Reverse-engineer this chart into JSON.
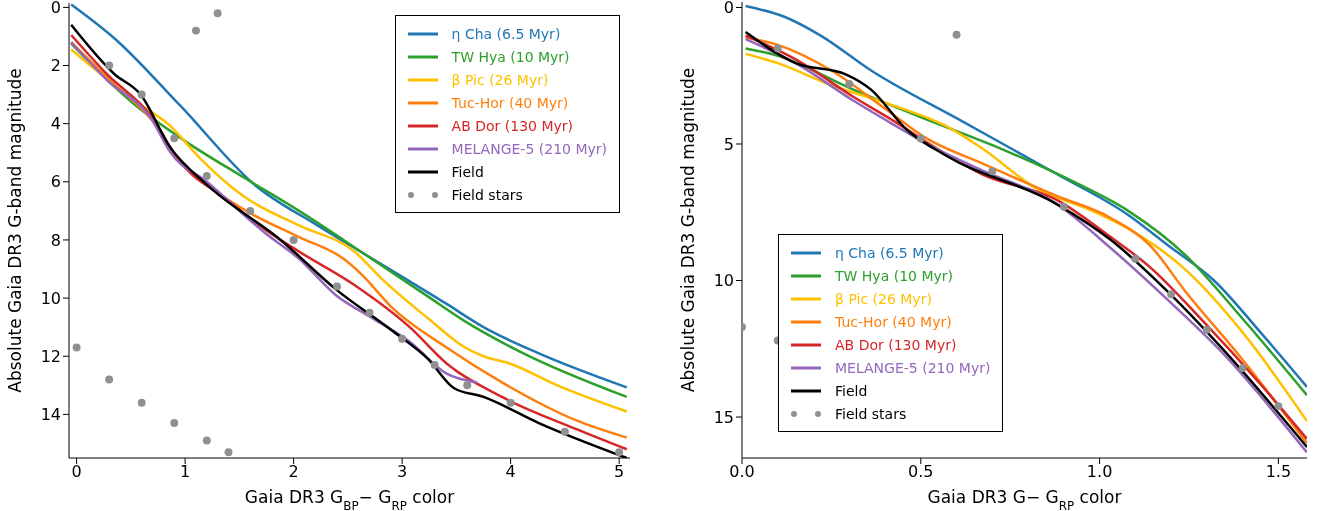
{
  "chart_data": [
    {
      "type": "line",
      "xlabel": "Gaia DR3 G$_{BP}$− G$_{RP}$ color",
      "ylabel": "Absolute Gaia DR3 G-band magnitude",
      "xlim": [
        -0.07,
        5.1
      ],
      "ylim": [
        15.5,
        -0.15
      ],
      "xticks": [
        0,
        1,
        2,
        3,
        4,
        5
      ],
      "yticks": [
        0,
        2,
        4,
        6,
        8,
        10,
        12,
        14
      ],
      "legend": "top right",
      "series": [
        {
          "name": "η Cha (6.5 Myr)",
          "color": "#1f77b4",
          "x": [
            -0.05,
            0.35,
            0.96,
            1.64,
            2.22,
            2.66,
            3.41,
            3.75,
            4.26,
            5.07
          ],
          "values": [
            -0.1,
            1.07,
            3.4,
            6.1,
            7.5,
            8.5,
            10.2,
            11.0,
            11.9,
            13.07
          ]
        },
        {
          "name": "TW Hya (10 Myr)",
          "color": "#2ca02c",
          "x": [
            -0.05,
            0.52,
            1.0,
            1.54,
            2.05,
            2.66,
            3.24,
            3.58,
            4.09,
            5.07
          ],
          "values": [
            1.25,
            3.3,
            4.6,
            5.85,
            7.0,
            8.5,
            9.95,
            10.8,
            11.85,
            13.4
          ]
        },
        {
          "name": "β Pic (26 Myr)",
          "color": "#ffc000",
          "x": [
            -0.05,
            0.52,
            0.86,
            1.14,
            1.54,
            2.05,
            2.56,
            2.83,
            3.24,
            3.58,
            3.75,
            3.99,
            4.43,
            5.07
          ],
          "values": [
            1.45,
            3.17,
            4.07,
            5.2,
            6.5,
            7.5,
            8.4,
            9.4,
            10.7,
            11.7,
            12.0,
            12.25,
            13.0,
            13.9
          ]
        },
        {
          "name": "Tuc-Hor (40 Myr)",
          "color": "#ff7f0e",
          "x": [
            -0.05,
            0.35,
            0.7,
            0.93,
            1.2,
            1.61,
            2.05,
            2.46,
            2.63,
            2.9,
            3.41,
            3.92,
            4.6,
            5.07
          ],
          "values": [
            1.2,
            2.66,
            3.9,
            5.2,
            6.1,
            7.1,
            7.9,
            8.65,
            9.2,
            10.3,
            11.7,
            12.9,
            14.2,
            14.8
          ]
        },
        {
          "name": "AB Dor (130 Myr)",
          "color": "#d62728",
          "x": [
            -0.05,
            0.28,
            0.7,
            0.93,
            1.38,
            1.74,
            2.05,
            2.56,
            3.07,
            3.41,
            3.92,
            4.6,
            5.07
          ],
          "values": [
            0.95,
            2.3,
            3.8,
            5.2,
            6.6,
            7.65,
            8.4,
            9.55,
            11.0,
            12.25,
            13.4,
            14.5,
            15.2
          ]
        },
        {
          "name": "MELANGE-5 (210 Myr)",
          "color": "#9467bd",
          "x": [
            -0.05,
            0.28,
            0.7,
            0.86,
            1.2,
            1.74,
            2.05,
            2.39,
            2.73,
            3.07,
            3.41,
            3.69
          ],
          "values": [
            1.2,
            2.5,
            3.9,
            4.96,
            6.0,
            7.77,
            8.65,
            9.9,
            10.7,
            11.5,
            12.6,
            12.9
          ]
        },
        {
          "name": "Field",
          "color": "#000000",
          "x": [
            -0.05,
            0.35,
            0.59,
            0.86,
            1.2,
            1.88,
            2.39,
            2.9,
            3.24,
            3.48,
            3.75,
            4.26,
            5.07
          ],
          "values": [
            0.6,
            2.3,
            3.0,
            4.8,
            6.1,
            8.0,
            9.7,
            11.1,
            12.1,
            13.1,
            13.4,
            14.3,
            15.5
          ]
        },
        {
          "type": "scatter",
          "name": "Field stars",
          "color": "#909090",
          "x": [
            0.3,
            0.6,
            0.9,
            1.2,
            1.6,
            2.0,
            2.4,
            2.7,
            3.0,
            3.3,
            3.6,
            4.0,
            4.5,
            5.0,
            0.0,
            0.3,
            0.6,
            0.9,
            1.2,
            1.4,
            1.1,
            1.3
          ],
          "values": [
            2.0,
            3.0,
            4.5,
            5.8,
            7.0,
            8.0,
            9.6,
            10.5,
            11.4,
            12.3,
            13.0,
            13.6,
            14.6,
            15.3,
            11.7,
            12.8,
            13.6,
            14.3,
            14.9,
            15.3,
            0.8,
            0.2
          ]
        }
      ]
    },
    {
      "type": "line",
      "xlabel": "Gaia DR3 G− G$_{RP}$ color",
      "ylabel": "Absolute Gaia DR3 G-band magnitude",
      "xlim": [
        0,
        1.58
      ],
      "ylim": [
        16.5,
        -0.2
      ],
      "xticks": [
        {
          "value": 0,
          "label": "0.0"
        },
        {
          "value": 0.5,
          "label": "0.5"
        },
        {
          "value": 1,
          "label": "1.0"
        },
        {
          "value": 1.5,
          "label": "1.5"
        }
      ],
      "yticks": [
        0,
        5,
        10,
        15
      ],
      "legend": "bottom left",
      "series": [
        {
          "name": "η Cha (6.5 Myr)",
          "color": "#1f77b4",
          "x": [
            0.01,
            0.12,
            0.22,
            0.36,
            0.62,
            0.88,
            1.08,
            1.19,
            1.32,
            1.45,
            1.58
          ],
          "values": [
            -0.05,
            0.35,
            1.03,
            2.3,
            4.2,
            6.1,
            7.6,
            8.7,
            10.0,
            11.9,
            13.9
          ]
        },
        {
          "name": "TW Hya (10 Myr)",
          "color": "#2ca02c",
          "x": [
            0.01,
            0.1,
            0.31,
            0.51,
            0.72,
            0.93,
            1.08,
            1.24,
            1.4,
            1.58
          ],
          "values": [
            1.5,
            1.77,
            3.0,
            4.07,
            5.15,
            6.4,
            7.45,
            9.07,
            11.4,
            14.2
          ]
        },
        {
          "name": "β Pic (26 Myr)",
          "color": "#ffc000",
          "x": [
            0.01,
            0.1,
            0.25,
            0.41,
            0.57,
            0.67,
            0.82,
            0.98,
            1.08,
            1.24,
            1.4,
            1.58
          ],
          "values": [
            1.7,
            2.04,
            2.85,
            3.53,
            4.34,
            5.15,
            6.6,
            7.45,
            8.1,
            9.6,
            11.9,
            15.15
          ]
        },
        {
          "name": "Tuc-Hor (40 Myr)",
          "color": "#ff7f0e",
          "x": [
            0.01,
            0.1,
            0.25,
            0.41,
            0.51,
            0.67,
            0.88,
            1.03,
            1.14,
            1.24,
            1.4,
            1.58
          ],
          "values": [
            1.1,
            1.37,
            2.31,
            3.8,
            4.75,
            5.7,
            6.9,
            7.7,
            8.7,
            10.4,
            12.9,
            15.96
          ]
        },
        {
          "name": "AB Dor (130 Myr)",
          "color": "#d62728",
          "x": [
            0.01,
            0.15,
            0.31,
            0.43,
            0.51,
            0.67,
            0.88,
            1.03,
            1.14,
            1.29,
            1.45,
            1.58
          ],
          "values": [
            1.03,
            1.9,
            3.26,
            4.2,
            4.88,
            6.1,
            7.05,
            8.4,
            9.5,
            11.5,
            13.8,
            15.8
          ]
        },
        {
          "name": "MELANGE-5 (210 Myr)",
          "color": "#9467bd",
          "x": [
            0.01,
            0.15,
            0.31,
            0.43,
            0.51,
            0.67,
            0.88,
            1.03,
            1.19,
            1.34,
            1.58
          ],
          "values": [
            1.16,
            2.04,
            3.4,
            4.34,
            4.95,
            5.96,
            7.2,
            8.8,
            10.7,
            12.6,
            16.3
          ]
        },
        {
          "name": "Field",
          "color": "#000000",
          "x": [
            0.01,
            0.15,
            0.29,
            0.36,
            0.46,
            0.57,
            0.88,
            1.03,
            1.19,
            1.34,
            1.58
          ],
          "values": [
            0.9,
            2.04,
            2.45,
            3.0,
            4.47,
            5.42,
            7.2,
            8.5,
            10.4,
            12.45,
            16.1
          ]
        },
        {
          "type": "scatter",
          "name": "Field stars",
          "color": "#909090",
          "x": [
            0.1,
            0.3,
            0.5,
            0.7,
            0.9,
            1.1,
            1.2,
            1.3,
            1.4,
            1.5,
            0.0,
            0.1,
            0.6
          ],
          "values": [
            1.5,
            2.8,
            4.8,
            6.0,
            7.3,
            9.2,
            10.5,
            11.8,
            13.2,
            14.6,
            11.7,
            12.2,
            1.0
          ]
        }
      ]
    }
  ]
}
